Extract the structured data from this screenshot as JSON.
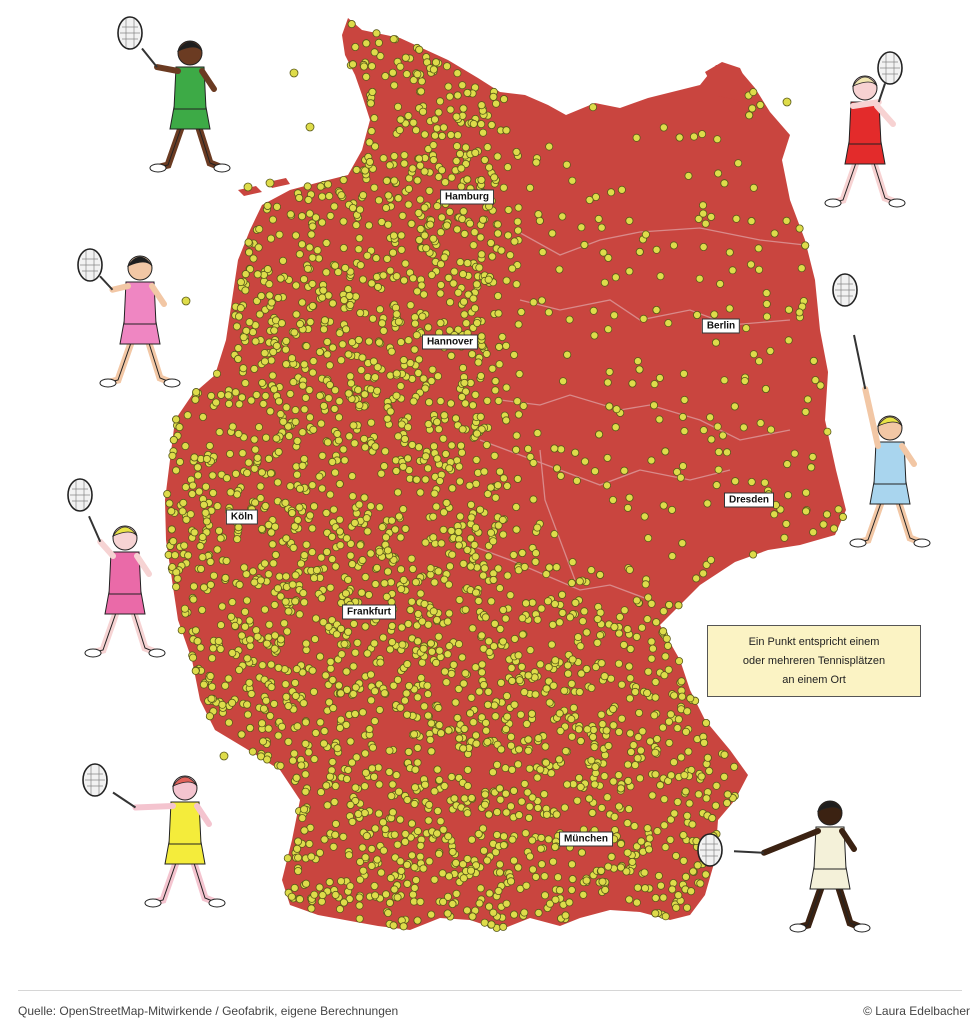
{
  "map": {
    "colors": {
      "land": "#c9453f",
      "border": "#d98a8a",
      "dot_fill": "#dedc4a",
      "dot_stroke": "#5a5a1a",
      "background": "#ffffff"
    },
    "cities": [
      {
        "name": "Hamburg"
      },
      {
        "name": "Hannover"
      },
      {
        "name": "Berlin"
      },
      {
        "name": "Köln"
      },
      {
        "name": "Frankfurt"
      },
      {
        "name": "Dresden"
      },
      {
        "name": "München"
      }
    ],
    "legend_lines": [
      "Ein Punkt entspricht einem",
      "oder mehreren Tennisplätzen",
      "an einem Ort"
    ]
  },
  "players": [
    {
      "name": "player-green-shirt",
      "shirt": "#3daa46",
      "shorts": "#3daa46",
      "skin": "#6b3b22",
      "hair": "#1e1e1e"
    },
    {
      "name": "player-red-dress",
      "shirt": "#e32b2b",
      "shorts": "#e32b2b",
      "skin": "#f7d2d2",
      "hair": "#f2e6b0"
    },
    {
      "name": "player-pink-outfit",
      "shirt": "#ef86c2",
      "shorts": "#ef86c2",
      "skin": "#f2c7a5",
      "hair": "#1e1e1e"
    },
    {
      "name": "player-light-blue",
      "shirt": "#a9d5ee",
      "shorts": "#a9d5ee",
      "skin": "#f2c7a5",
      "hair": "#e9e347"
    },
    {
      "name": "player-pink-cap",
      "shirt": "#ea6aa8",
      "shorts": "#ea6aa8",
      "skin": "#f6d3d3",
      "hair": "#e9e347"
    },
    {
      "name": "player-yellow-dress",
      "shirt": "#f4ec3b",
      "shorts": "#f4ec3b",
      "skin": "#f4c4cf",
      "hair": "#e1625a"
    },
    {
      "name": "player-white-dress",
      "shirt": "#f4f1d9",
      "shorts": "#f4f1d9",
      "skin": "#3b2212",
      "hair": "#1e1e1e"
    }
  ],
  "footer": {
    "source": "Quelle: OpenStreetMap-Mitwirkende / Geofabrik, eigene Berechnungen",
    "credit": "© Laura Edelbacher"
  }
}
